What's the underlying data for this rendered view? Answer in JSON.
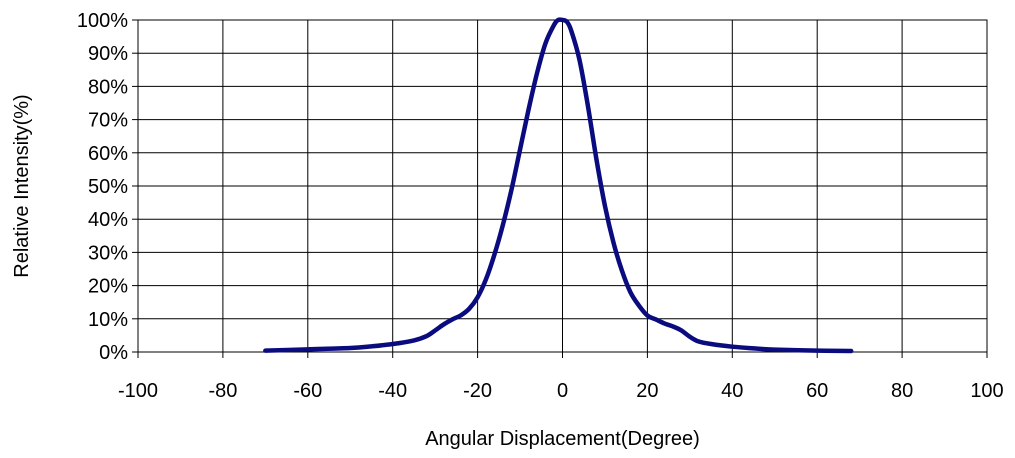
{
  "chart_data": {
    "type": "line",
    "title": "",
    "xlabel": "Angular Displacement(Degree)",
    "ylabel": "Relative Intensity(%)",
    "xlim": [
      -100,
      100
    ],
    "ylim": [
      0,
      100
    ],
    "x_ticks": [
      -100,
      -80,
      -60,
      -40,
      -20,
      0,
      20,
      40,
      60,
      80,
      100
    ],
    "y_ticks": [
      0,
      10,
      20,
      30,
      40,
      50,
      60,
      70,
      80,
      90,
      100
    ],
    "x_tick_labels": [
      "-100",
      "-80",
      "-60",
      "-40",
      "-20",
      "0",
      "20",
      "40",
      "60",
      "80",
      "100"
    ],
    "y_tick_labels": [
      "0%",
      "10%",
      "20%",
      "30%",
      "40%",
      "50%",
      "60%",
      "70%",
      "80%",
      "90%",
      "100%"
    ],
    "grid": true,
    "legend": "none",
    "line_color": "#0b0b80",
    "grid_color": "#000000",
    "series": [
      {
        "x": [
          -70,
          -60,
          -50,
          -45,
          -40,
          -35,
          -32,
          -30,
          -28,
          -26,
          -24,
          -22,
          -20,
          -18,
          -16,
          -14,
          -12,
          -10,
          -8,
          -6,
          -4,
          -2,
          -1,
          0,
          1,
          2,
          4,
          6,
          8,
          10,
          12,
          14,
          16,
          18,
          20,
          22,
          24,
          26,
          28,
          30,
          32,
          35,
          40,
          45,
          50,
          60,
          68
        ],
        "y": [
          0.4,
          0.8,
          1.2,
          1.7,
          2.4,
          3.5,
          4.8,
          6.5,
          8.3,
          9.8,
          11,
          13,
          16.5,
          22,
          29.5,
          38.5,
          49,
          61,
          73,
          84,
          93,
          98.5,
          100,
          100,
          99.5,
          97,
          88,
          74,
          58,
          44,
          33,
          24.5,
          18,
          14,
          11,
          9.8,
          8.6,
          7.7,
          6.5,
          4.6,
          3.2,
          2.4,
          1.6,
          1.1,
          0.7,
          0.4,
          0.3
        ]
      }
    ]
  }
}
